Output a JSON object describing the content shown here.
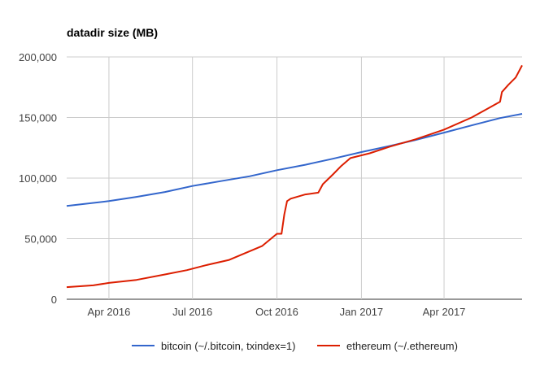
{
  "chart_data": {
    "type": "line",
    "title": "datadir size (MB)",
    "xlabel": "",
    "ylabel": "",
    "x_domain": [
      "2016-02-15",
      "2017-06-25"
    ],
    "ylim": [
      0,
      200000
    ],
    "y_ticks": [
      0,
      50000,
      100000,
      150000,
      200000
    ],
    "y_tick_labels": [
      "0",
      "50,000",
      "100,000",
      "150,000",
      "200,000"
    ],
    "x_ticks": [
      {
        "date": "2016-04-01",
        "label": "Apr 2016"
      },
      {
        "date": "2016-07-01",
        "label": "Jul 2016"
      },
      {
        "date": "2016-10-01",
        "label": "Oct 2016"
      },
      {
        "date": "2017-01-01",
        "label": "Jan 2017"
      },
      {
        "date": "2017-04-01",
        "label": "Apr 2017"
      }
    ],
    "grid": true,
    "legend_position": "bottom",
    "series": [
      {
        "name": "bitcoin (~/.bitcoin, txindex=1)",
        "color": "#3366cc",
        "points": [
          [
            "2016-02-15",
            77000
          ],
          [
            "2016-04-01",
            81000
          ],
          [
            "2016-05-01",
            84500
          ],
          [
            "2016-06-01",
            88500
          ],
          [
            "2016-07-01",
            93500
          ],
          [
            "2016-08-01",
            97500
          ],
          [
            "2016-09-01",
            101500
          ],
          [
            "2016-10-01",
            106500
          ],
          [
            "2016-11-01",
            111000
          ],
          [
            "2016-12-01",
            116000
          ],
          [
            "2017-01-01",
            121500
          ],
          [
            "2017-02-01",
            126500
          ],
          [
            "2017-03-01",
            131500
          ],
          [
            "2017-04-01",
            137500
          ],
          [
            "2017-05-01",
            143500
          ],
          [
            "2017-06-01",
            149500
          ],
          [
            "2017-06-25",
            153000
          ]
        ]
      },
      {
        "name": "ethereum (~/.ethereum)",
        "color": "#dc1e00",
        "points": [
          [
            "2016-02-15",
            10000
          ],
          [
            "2016-03-15",
            11500
          ],
          [
            "2016-04-01",
            13500
          ],
          [
            "2016-05-01",
            16000
          ],
          [
            "2016-06-01",
            20500
          ],
          [
            "2016-06-25",
            24000
          ],
          [
            "2016-07-15",
            28000
          ],
          [
            "2016-08-10",
            32500
          ],
          [
            "2016-09-15",
            44000
          ],
          [
            "2016-10-01",
            54000
          ],
          [
            "2016-10-06",
            54000
          ],
          [
            "2016-10-09",
            70000
          ],
          [
            "2016-10-12",
            81000
          ],
          [
            "2016-10-16",
            83000
          ],
          [
            "2016-11-01",
            86500
          ],
          [
            "2016-11-15",
            88000
          ],
          [
            "2016-11-20",
            95000
          ],
          [
            "2016-12-01",
            103000
          ],
          [
            "2016-12-10",
            110000
          ],
          [
            "2016-12-20",
            116500
          ],
          [
            "2017-01-10",
            120500
          ],
          [
            "2017-02-01",
            126000
          ],
          [
            "2017-03-01",
            132000
          ],
          [
            "2017-04-01",
            140000
          ],
          [
            "2017-05-01",
            150000
          ],
          [
            "2017-05-20",
            158000
          ],
          [
            "2017-06-01",
            163000
          ],
          [
            "2017-06-03",
            171000
          ],
          [
            "2017-06-10",
            177000
          ],
          [
            "2017-06-18",
            183000
          ],
          [
            "2017-06-25",
            193000
          ]
        ]
      }
    ]
  }
}
